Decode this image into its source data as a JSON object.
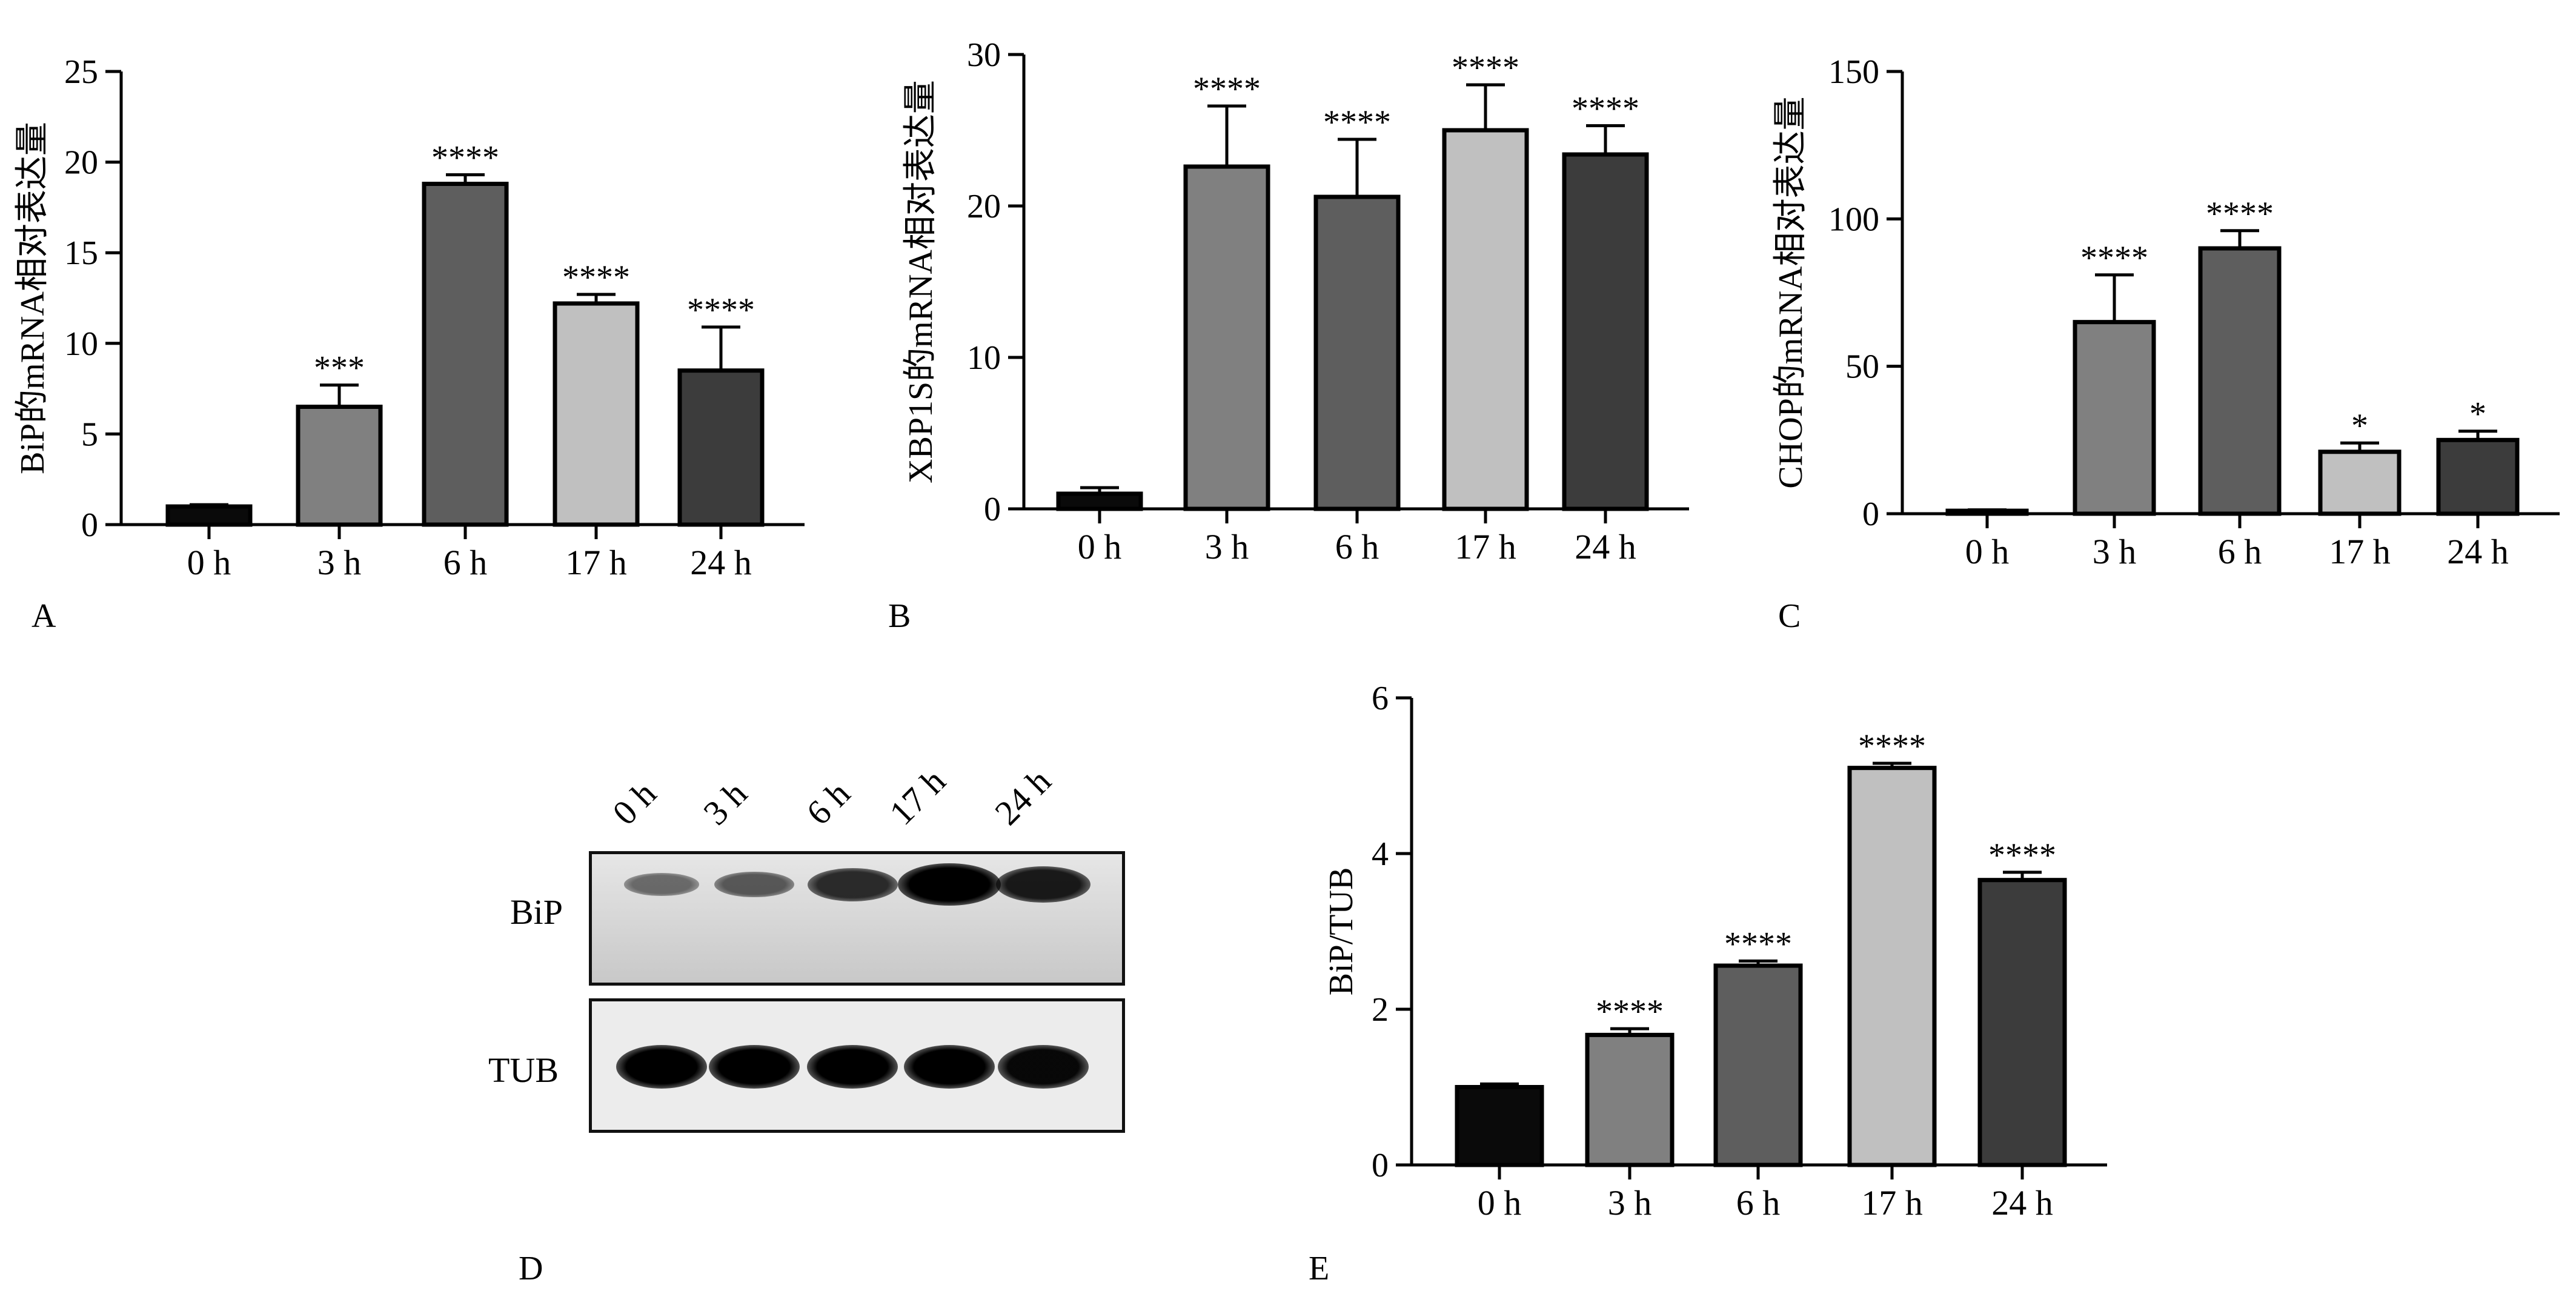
{
  "panels": {
    "A": {
      "letter": "A"
    },
    "B": {
      "letter": "B"
    },
    "C": {
      "letter": "C"
    },
    "D": {
      "letter": "D"
    },
    "E": {
      "letter": "E"
    }
  },
  "blot": {
    "lanes": [
      "0 h",
      "3 h",
      "6 h",
      "17 h",
      "24 h"
    ],
    "rows": [
      {
        "label": "BiP",
        "intensity": [
          0.35,
          0.45,
          0.7,
          1.0,
          0.8
        ]
      },
      {
        "label": "TUB",
        "intensity": [
          1.0,
          1.0,
          0.95,
          0.95,
          0.9
        ]
      }
    ]
  },
  "colors": {
    "bar": [
      "#0a0a0a",
      "#808080",
      "#5e5e5e",
      "#c0c0c0",
      "#3c3c3c"
    ],
    "axis": "#000000"
  },
  "chart_data": [
    {
      "type": "bar",
      "panel": "A",
      "categories": [
        "0 h",
        "3 h",
        "6 h",
        "17 h",
        "24 h"
      ],
      "values": [
        1.0,
        6.5,
        18.8,
        12.2,
        8.5
      ],
      "errors": [
        0.1,
        1.2,
        0.5,
        0.5,
        2.4
      ],
      "annotations": [
        "",
        "***",
        "****",
        "****",
        "****"
      ],
      "ylabel": "BiP的mRNA相对表达量",
      "ylim": [
        0,
        25
      ],
      "yticks": [
        0,
        5,
        10,
        15,
        20,
        25
      ]
    },
    {
      "type": "bar",
      "panel": "B",
      "categories": [
        "0 h",
        "3 h",
        "6 h",
        "17 h",
        "24 h"
      ],
      "values": [
        1.0,
        22.6,
        20.6,
        25.0,
        23.4
      ],
      "errors": [
        0.4,
        4.0,
        3.8,
        3.0,
        1.9
      ],
      "annotations": [
        "",
        "****",
        "****",
        "****",
        "****"
      ],
      "ylabel": "XBP1S的mRNA相对表达量",
      "ylim": [
        0,
        30
      ],
      "yticks": [
        0,
        10,
        20,
        30
      ]
    },
    {
      "type": "bar",
      "panel": "C",
      "categories": [
        "0 h",
        "3 h",
        "6 h",
        "17 h",
        "24 h"
      ],
      "values": [
        1.0,
        65,
        90,
        21,
        25
      ],
      "errors": [
        0.3,
        16,
        6,
        3,
        3
      ],
      "annotations": [
        "",
        "****",
        "****",
        "*",
        "*"
      ],
      "ylabel": "CHOP的mRNA相对表达量",
      "ylim": [
        0,
        150
      ],
      "yticks": [
        0,
        50,
        100,
        150
      ]
    },
    {
      "type": "bar",
      "panel": "E",
      "categories": [
        "0 h",
        "3 h",
        "6 h",
        "17 h",
        "24 h"
      ],
      "values": [
        1.0,
        1.67,
        2.56,
        5.1,
        3.66
      ],
      "errors": [
        0.04,
        0.08,
        0.06,
        0.06,
        0.1
      ],
      "annotations": [
        "",
        "****",
        "****",
        "****",
        "****"
      ],
      "ylabel": "BiP/TUB",
      "ylim": [
        0,
        6
      ],
      "yticks": [
        0,
        2,
        4,
        6
      ]
    }
  ]
}
